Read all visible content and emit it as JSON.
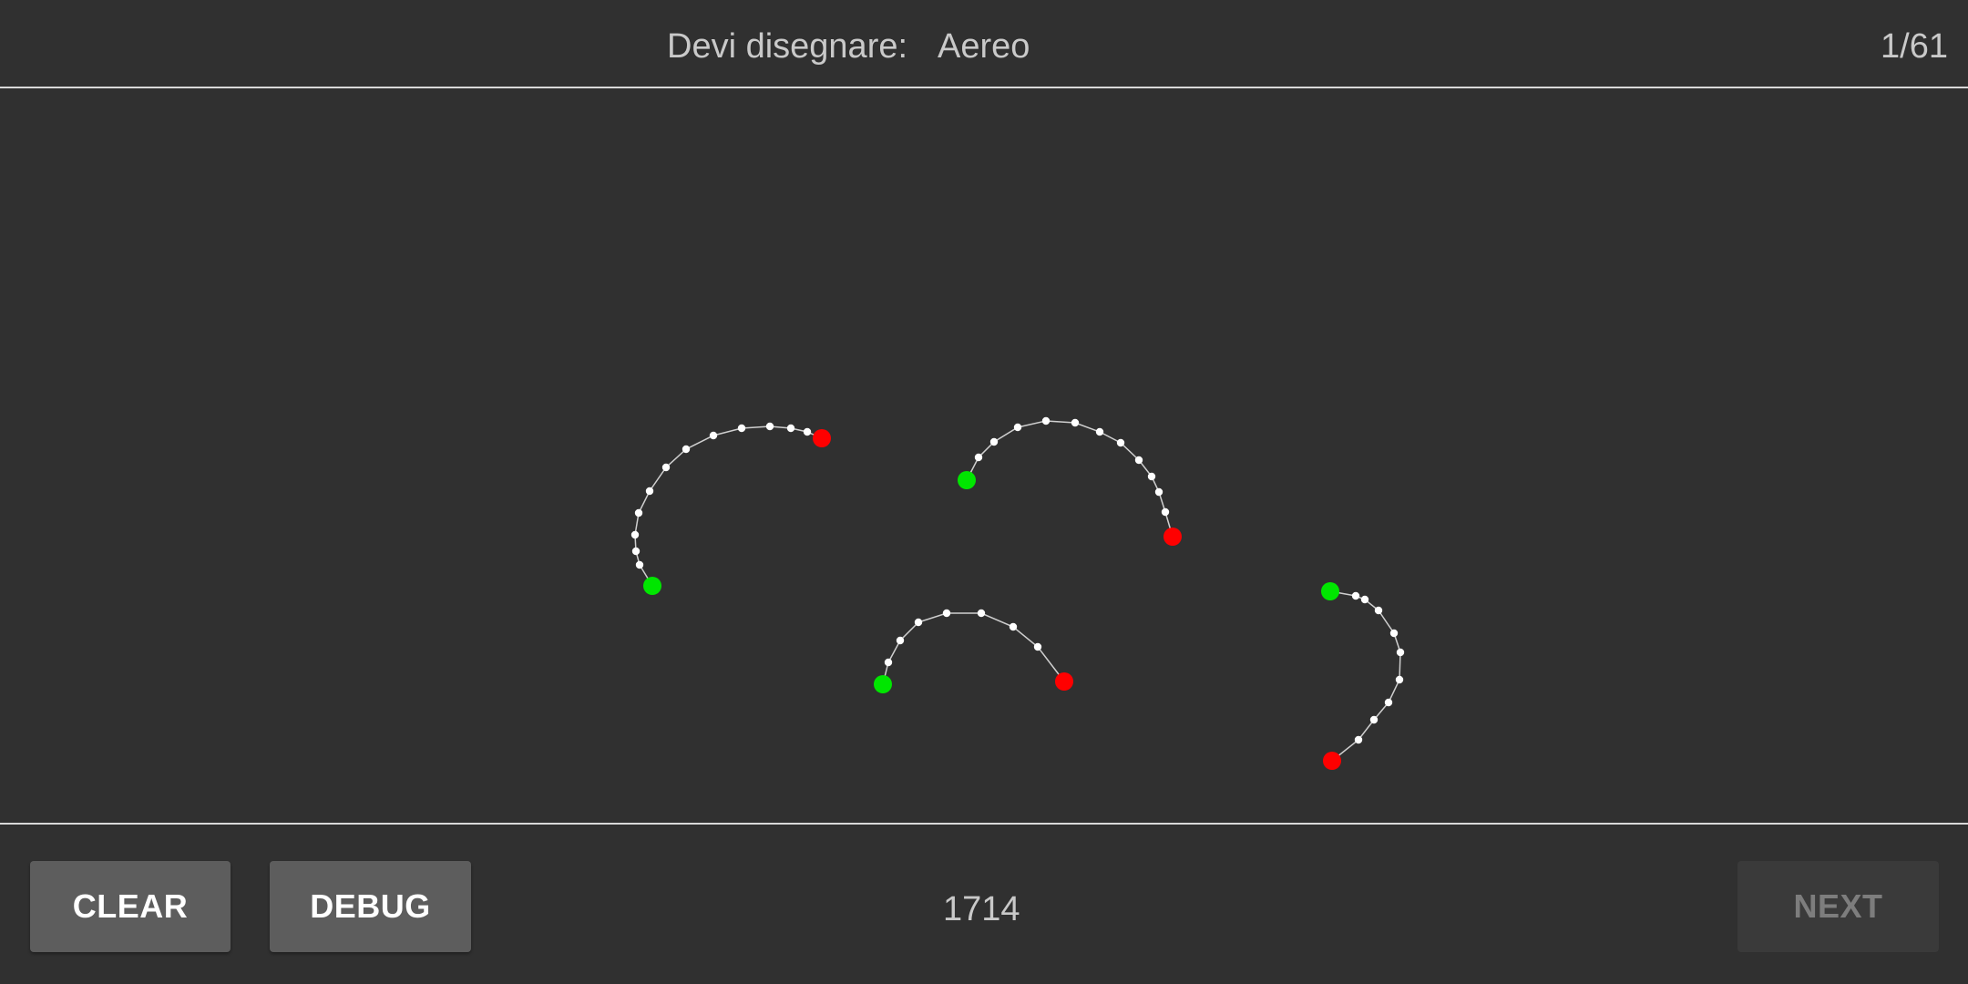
{
  "header": {
    "prompt_label": "Devi disegnare:",
    "prompt_word": "Aereo",
    "counter": "1/61"
  },
  "footer": {
    "clear_label": "CLEAR",
    "debug_label": "DEBUG",
    "score": "1714",
    "next_label": "NEXT",
    "next_enabled": false
  },
  "colors": {
    "background": "#303030",
    "stroke_start": "#00e600",
    "stroke_end": "#ff0000",
    "stroke_point": "#ffffff",
    "stroke_line": "#cfcfcf"
  }
}
